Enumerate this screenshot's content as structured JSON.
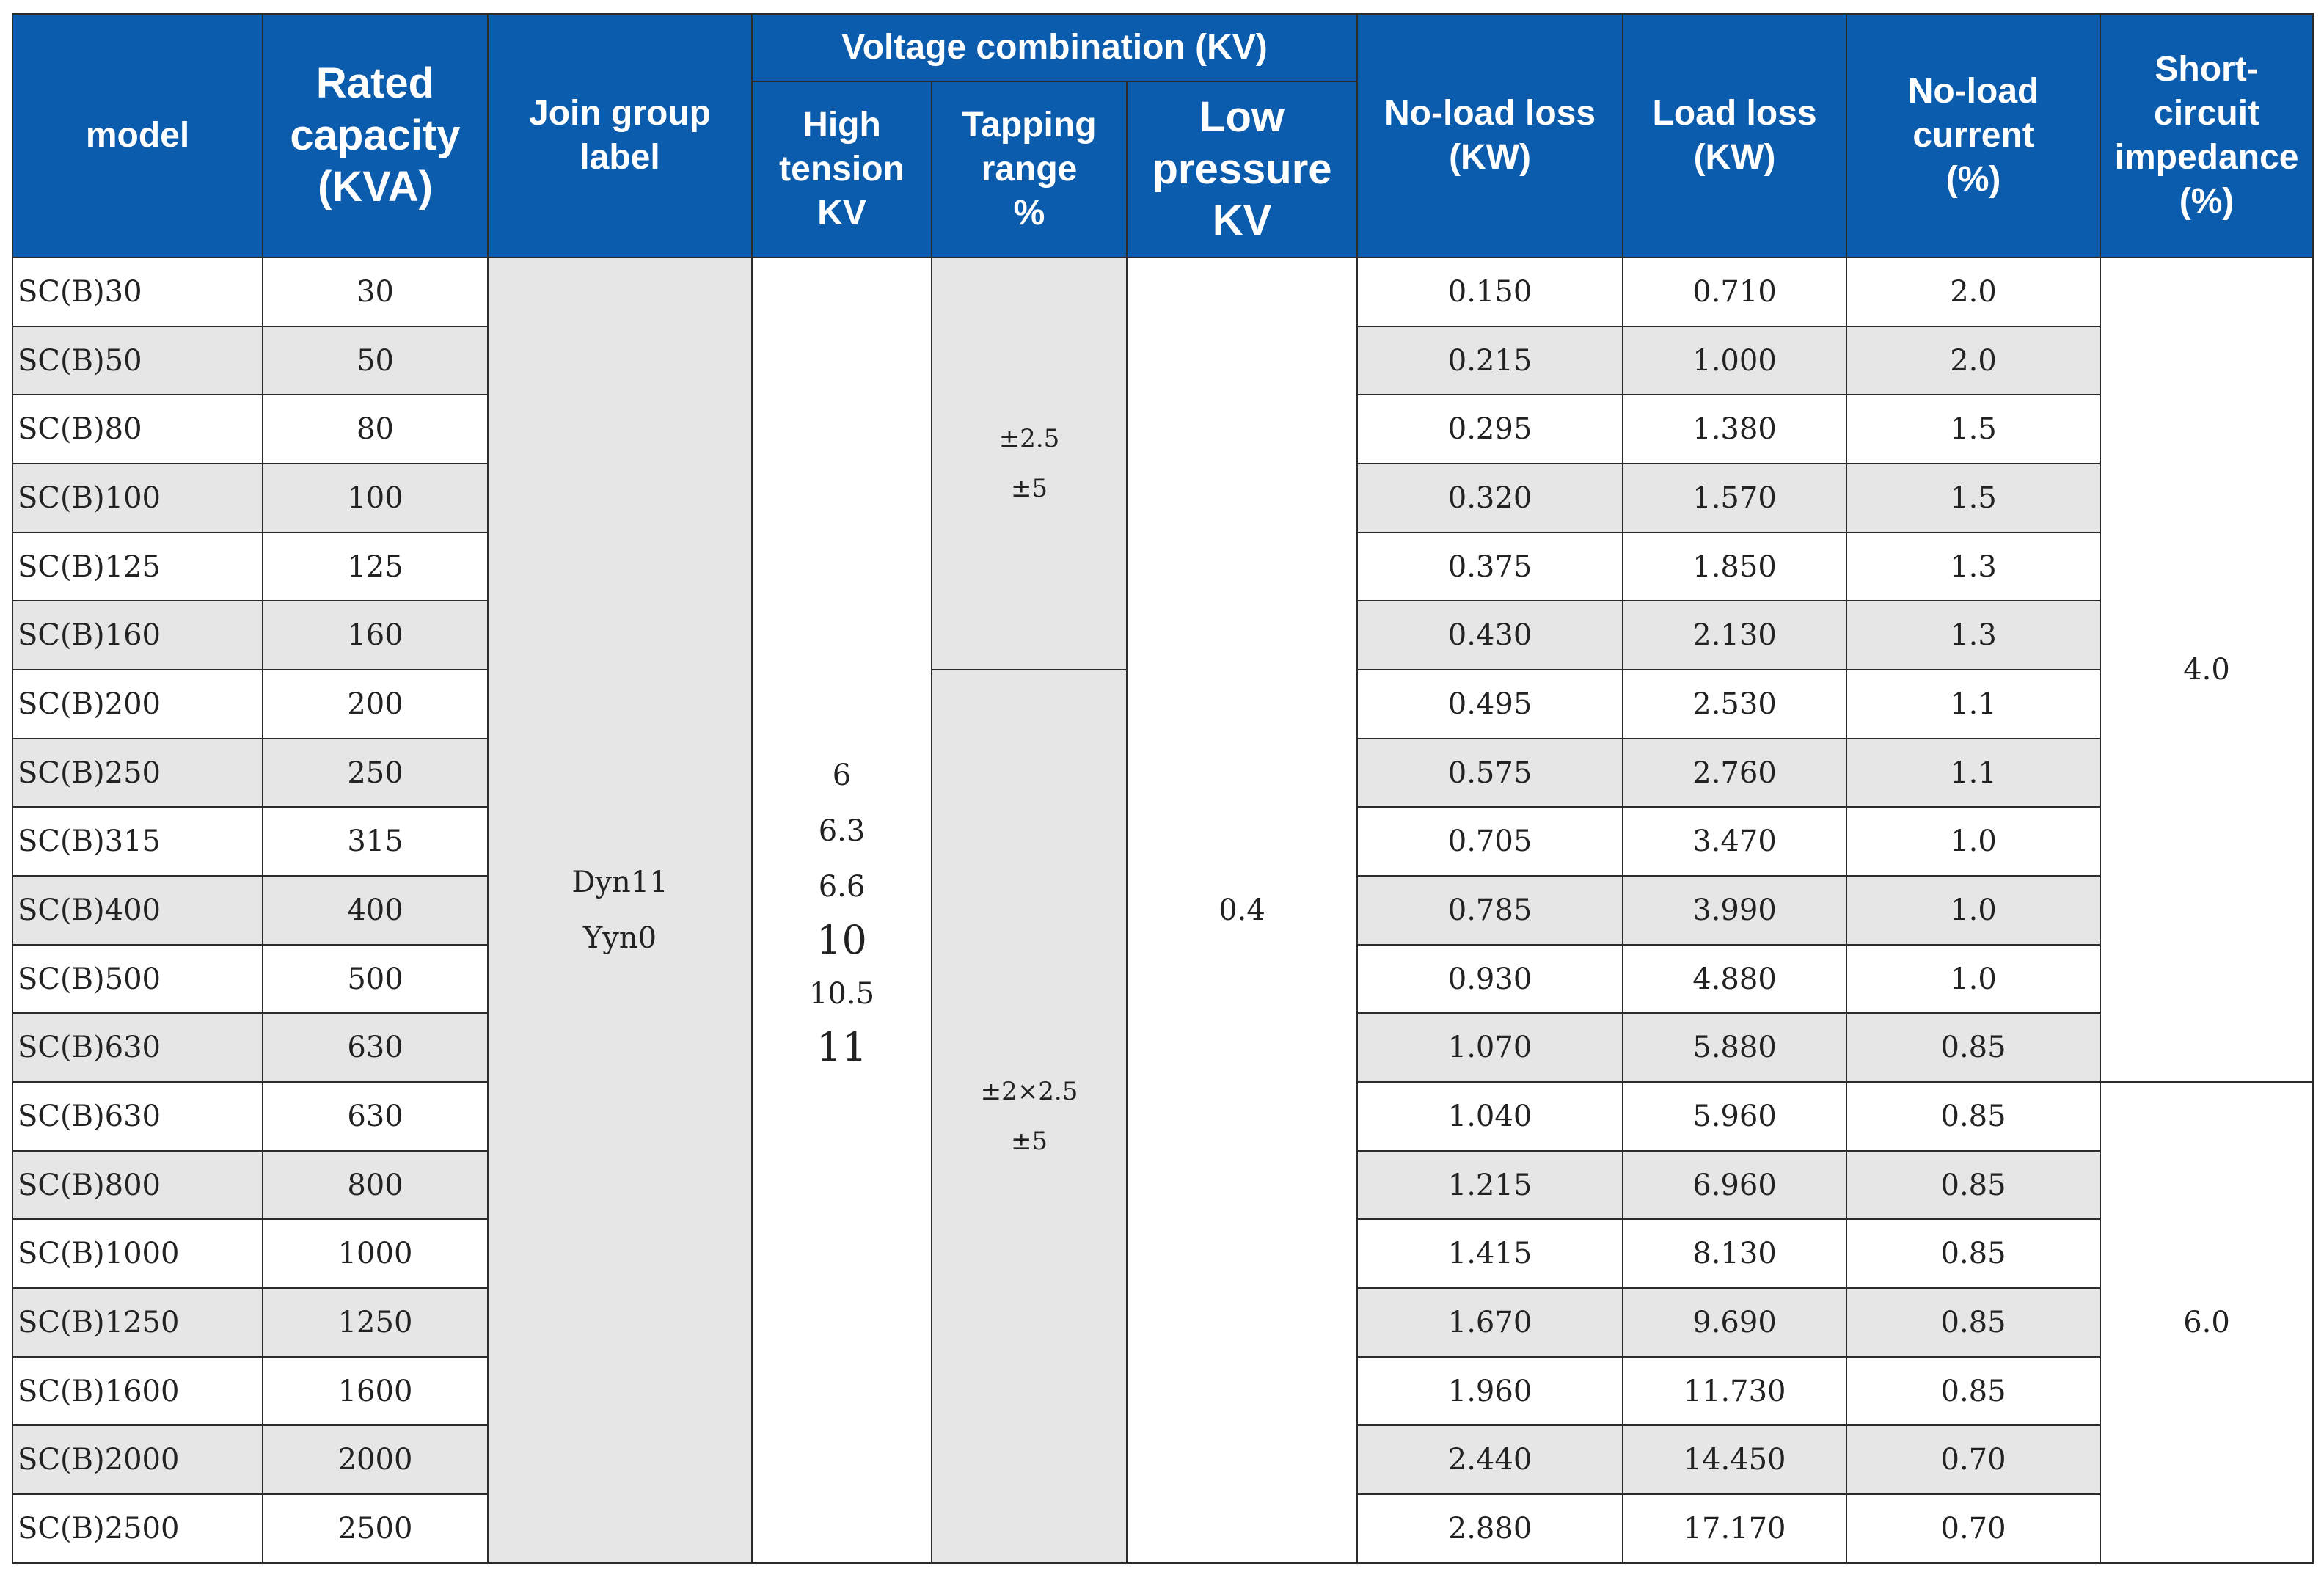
{
  "headers": {
    "model": "model",
    "rated_capacity": [
      "Rated",
      "capacity",
      "(KVA)"
    ],
    "join_group": [
      "Join group",
      "label"
    ],
    "voltage_combination": "Voltage combination (KV)",
    "high_tension": [
      "High",
      "tension",
      "KV"
    ],
    "tapping_range": [
      "Tapping",
      "range",
      "%"
    ],
    "low_pressure": [
      "Low",
      "pressure",
      "KV"
    ],
    "no_load_loss": [
      "No-load loss",
      "(KW)"
    ],
    "load_loss": [
      "Load loss",
      "(KW)"
    ],
    "no_load_current": [
      "No-load",
      "current",
      "(%)"
    ],
    "short_circuit": [
      "Short-",
      "circuit",
      "impedance",
      "(%)"
    ]
  },
  "merged": {
    "join_group": [
      "Dyn11",
      "Yyn0"
    ],
    "high_tension": [
      "6",
      "6.3",
      "6.6",
      "10",
      "10.5",
      "11"
    ],
    "tapping_upper": [
      "±2.5",
      "±5"
    ],
    "tapping_lower": [
      "±2×2.5",
      "±5"
    ],
    "low_pressure": "0.4",
    "impedance_upper": "4.0",
    "impedance_lower": "6.0"
  },
  "rows": [
    {
      "model": "SC(B)30",
      "capacity": "30",
      "no_load_loss": "0.150",
      "load_loss": "0.710",
      "no_load_current": "2.0"
    },
    {
      "model": "SC(B)50",
      "capacity": "50",
      "no_load_loss": "0.215",
      "load_loss": "1.000",
      "no_load_current": "2.0"
    },
    {
      "model": "SC(B)80",
      "capacity": "80",
      "no_load_loss": "0.295",
      "load_loss": "1.380",
      "no_load_current": "1.5"
    },
    {
      "model": "SC(B)100",
      "capacity": "100",
      "no_load_loss": "0.320",
      "load_loss": "1.570",
      "no_load_current": "1.5"
    },
    {
      "model": "SC(B)125",
      "capacity": "125",
      "no_load_loss": "0.375",
      "load_loss": "1.850",
      "no_load_current": "1.3"
    },
    {
      "model": "SC(B)160",
      "capacity": "160",
      "no_load_loss": "0.430",
      "load_loss": "2.130",
      "no_load_current": "1.3"
    },
    {
      "model": "SC(B)200",
      "capacity": "200",
      "no_load_loss": "0.495",
      "load_loss": "2.530",
      "no_load_current": "1.1"
    },
    {
      "model": "SC(B)250",
      "capacity": "250",
      "no_load_loss": "0.575",
      "load_loss": "2.760",
      "no_load_current": "1.1"
    },
    {
      "model": "SC(B)315",
      "capacity": "315",
      "no_load_loss": "0.705",
      "load_loss": "3.470",
      "no_load_current": "1.0"
    },
    {
      "model": "SC(B)400",
      "capacity": "400",
      "no_load_loss": "0.785",
      "load_loss": "3.990",
      "no_load_current": "1.0"
    },
    {
      "model": "SC(B)500",
      "capacity": "500",
      "no_load_loss": "0.930",
      "load_loss": "4.880",
      "no_load_current": "1.0"
    },
    {
      "model": "SC(B)630",
      "capacity": "630",
      "no_load_loss": "1.070",
      "load_loss": "5.880",
      "no_load_current": "0.85"
    },
    {
      "model": "SC(B)630",
      "capacity": "630",
      "no_load_loss": "1.040",
      "load_loss": "5.960",
      "no_load_current": "0.85"
    },
    {
      "model": "SC(B)800",
      "capacity": "800",
      "no_load_loss": "1.215",
      "load_loss": "6.960",
      "no_load_current": "0.85"
    },
    {
      "model": "SC(B)1000",
      "capacity": "1000",
      "no_load_loss": "1.415",
      "load_loss": "8.130",
      "no_load_current": "0.85"
    },
    {
      "model": "SC(B)1250",
      "capacity": "1250",
      "no_load_loss": "1.670",
      "load_loss": "9.690",
      "no_load_current": "0.85"
    },
    {
      "model": "SC(B)1600",
      "capacity": "1600",
      "no_load_loss": "1.960",
      "load_loss": "11.730",
      "no_load_current": "0.85"
    },
    {
      "model": "SC(B)2000",
      "capacity": "2000",
      "no_load_loss": "2.440",
      "load_loss": "14.450",
      "no_load_current": "0.70"
    },
    {
      "model": "SC(B)2500",
      "capacity": "2500",
      "no_load_loss": "2.880",
      "load_loss": "17.170",
      "no_load_current": "0.70"
    }
  ],
  "colors": {
    "header_bg": "#0b5cad",
    "header_text": "#ffffff",
    "shade": "#e6e6e6",
    "border": "#2b2b2b"
  }
}
